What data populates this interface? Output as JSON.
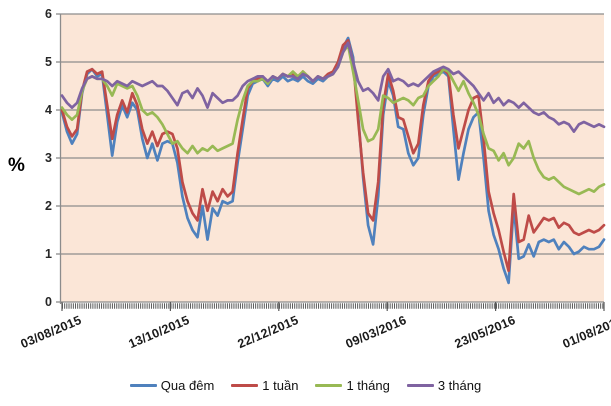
{
  "chart_data": {
    "type": "line",
    "title": "",
    "xlabel": "",
    "ylabel": "%",
    "ylim": [
      0,
      6
    ],
    "yticks": [
      0,
      1,
      2,
      3,
      4,
      5,
      6
    ],
    "x_tick_labels": [
      "03/08/2015",
      "13/10/2015",
      "22/12/2015",
      "09/03/2016",
      "23/05/2016",
      "01/08/2016"
    ],
    "grid": true,
    "legend_position": "bottom",
    "plot_bg_color": "#FBE6D7",
    "grid_color": "#8C8C8C",
    "axis_color": "#595959",
    "series": [
      {
        "name": "Qua đêm",
        "color": "#4F81BD",
        "values": [
          3.95,
          3.55,
          3.3,
          3.5,
          4.35,
          4.75,
          4.85,
          4.7,
          4.75,
          3.9,
          3.05,
          3.75,
          4.1,
          3.85,
          4.15,
          4.0,
          3.4,
          3.0,
          3.3,
          2.95,
          3.3,
          3.35,
          3.3,
          2.9,
          2.2,
          1.75,
          1.5,
          1.35,
          2.0,
          1.3,
          1.95,
          1.8,
          2.1,
          2.05,
          2.1,
          2.9,
          3.6,
          4.3,
          4.55,
          4.6,
          4.65,
          4.5,
          4.65,
          4.6,
          4.7,
          4.6,
          4.65,
          4.6,
          4.7,
          4.6,
          4.55,
          4.65,
          4.6,
          4.7,
          4.75,
          4.95,
          5.3,
          5.5,
          5.1,
          3.9,
          2.6,
          1.6,
          1.2,
          2.2,
          3.9,
          4.6,
          4.3,
          3.65,
          3.6,
          3.1,
          2.85,
          3.0,
          3.9,
          4.5,
          4.7,
          4.75,
          4.8,
          4.7,
          3.6,
          2.55,
          3.1,
          3.6,
          3.85,
          3.95,
          3.0,
          1.9,
          1.4,
          1.1,
          0.7,
          0.4,
          2.0,
          0.9,
          0.95,
          1.2,
          0.95,
          1.25,
          1.3,
          1.25,
          1.3,
          1.1,
          1.25,
          1.15,
          1.0,
          1.05,
          1.15,
          1.1,
          1.1,
          1.15,
          1.3
        ]
      },
      {
        "name": "1 tuần",
        "color": "#BE4B48",
        "values": [
          4.0,
          3.65,
          3.45,
          3.6,
          4.4,
          4.8,
          4.85,
          4.75,
          4.8,
          4.1,
          3.4,
          3.9,
          4.2,
          3.95,
          4.35,
          4.1,
          3.6,
          3.3,
          3.55,
          3.25,
          3.5,
          3.55,
          3.5,
          3.2,
          2.5,
          2.1,
          1.85,
          1.7,
          2.35,
          1.9,
          2.3,
          2.1,
          2.35,
          2.2,
          2.3,
          3.1,
          3.8,
          4.45,
          4.6,
          4.65,
          4.7,
          4.55,
          4.7,
          4.65,
          4.75,
          4.7,
          4.75,
          4.65,
          4.8,
          4.7,
          4.6,
          4.7,
          4.65,
          4.75,
          4.8,
          5.0,
          5.35,
          5.45,
          5.0,
          3.8,
          2.7,
          1.85,
          1.7,
          2.5,
          4.1,
          4.75,
          4.4,
          3.85,
          3.8,
          3.45,
          3.1,
          3.3,
          4.1,
          4.6,
          4.75,
          4.8,
          4.85,
          4.75,
          3.9,
          3.2,
          3.6,
          4.0,
          4.25,
          4.3,
          3.4,
          2.3,
          1.85,
          1.5,
          1.05,
          0.65,
          2.25,
          1.25,
          1.3,
          1.8,
          1.45,
          1.6,
          1.75,
          1.7,
          1.75,
          1.55,
          1.65,
          1.6,
          1.45,
          1.4,
          1.45,
          1.5,
          1.45,
          1.5,
          1.6
        ]
      },
      {
        "name": "1 tháng",
        "color": "#98B954",
        "values": [
          4.05,
          3.9,
          3.8,
          3.9,
          4.4,
          4.65,
          4.7,
          4.65,
          4.65,
          4.5,
          4.3,
          4.55,
          4.5,
          4.45,
          4.5,
          4.3,
          4.0,
          3.9,
          3.95,
          3.85,
          3.7,
          3.5,
          3.3,
          3.35,
          3.2,
          3.1,
          3.25,
          3.1,
          3.2,
          3.15,
          3.25,
          3.15,
          3.2,
          3.25,
          3.3,
          3.8,
          4.2,
          4.5,
          4.6,
          4.6,
          4.65,
          4.55,
          4.7,
          4.65,
          4.75,
          4.7,
          4.8,
          4.7,
          4.8,
          4.7,
          4.6,
          4.7,
          4.65,
          4.7,
          4.75,
          4.9,
          5.2,
          5.35,
          4.8,
          4.2,
          3.6,
          3.35,
          3.4,
          3.6,
          4.3,
          4.25,
          4.15,
          4.2,
          4.25,
          4.2,
          4.1,
          4.25,
          4.3,
          4.5,
          4.6,
          4.7,
          4.85,
          4.8,
          4.6,
          4.4,
          4.6,
          4.35,
          4.15,
          3.9,
          3.5,
          3.2,
          3.15,
          2.95,
          3.1,
          2.85,
          3.0,
          3.3,
          3.2,
          3.35,
          3.0,
          2.75,
          2.6,
          2.55,
          2.6,
          2.5,
          2.4,
          2.35,
          2.3,
          2.25,
          2.3,
          2.35,
          2.3,
          2.4,
          2.45
        ]
      },
      {
        "name": "3 tháng",
        "color": "#7F63A1",
        "values": [
          4.3,
          4.15,
          4.05,
          4.15,
          4.45,
          4.65,
          4.7,
          4.65,
          4.65,
          4.6,
          4.5,
          4.6,
          4.55,
          4.5,
          4.6,
          4.55,
          4.5,
          4.55,
          4.6,
          4.5,
          4.5,
          4.4,
          4.25,
          4.1,
          4.35,
          4.4,
          4.25,
          4.45,
          4.3,
          4.05,
          4.35,
          4.25,
          4.15,
          4.2,
          4.2,
          4.3,
          4.5,
          4.6,
          4.65,
          4.7,
          4.7,
          4.6,
          4.7,
          4.65,
          4.75,
          4.7,
          4.7,
          4.65,
          4.75,
          4.7,
          4.6,
          4.7,
          4.65,
          4.7,
          4.75,
          4.9,
          5.2,
          5.4,
          5.0,
          4.6,
          4.4,
          4.45,
          4.35,
          4.2,
          4.7,
          4.85,
          4.6,
          4.65,
          4.6,
          4.5,
          4.55,
          4.5,
          4.6,
          4.7,
          4.8,
          4.85,
          4.9,
          4.85,
          4.75,
          4.8,
          4.7,
          4.6,
          4.5,
          4.35,
          4.2,
          4.35,
          4.15,
          4.25,
          4.1,
          4.2,
          4.15,
          4.05,
          4.15,
          4.05,
          3.95,
          3.9,
          3.95,
          3.85,
          3.8,
          3.7,
          3.75,
          3.7,
          3.55,
          3.7,
          3.75,
          3.7,
          3.65,
          3.7,
          3.65
        ]
      }
    ]
  }
}
